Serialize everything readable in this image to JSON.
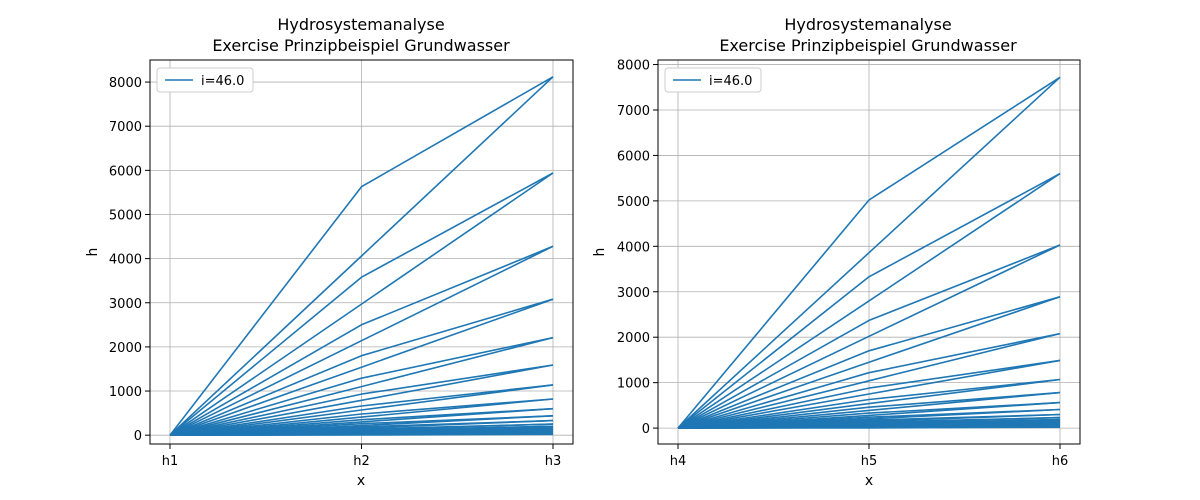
{
  "chart_data": [
    {
      "type": "line",
      "title": "Hydrosystemanalyse",
      "subtitle": "Exercise Prinzipbeispiel Grundwasser",
      "xlabel": "x",
      "ylabel": "h",
      "categories": [
        "h1",
        "h2",
        "h3"
      ],
      "ylim": [
        -200,
        8500
      ],
      "yticks": [
        0,
        1000,
        2000,
        3000,
        4000,
        5000,
        6000,
        7000,
        8000
      ],
      "grid": true,
      "legend": {
        "placement": "top-left",
        "entries": [
          "i=46.0"
        ]
      },
      "series": [
        {
          "values": [
            0,
            5630,
            8120
          ]
        },
        {
          "values": [
            0,
            4060,
            8120
          ]
        },
        {
          "values": [
            0,
            3580,
            5940
          ]
        },
        {
          "values": [
            0,
            2970,
            5940
          ]
        },
        {
          "values": [
            0,
            2500,
            4280
          ]
        },
        {
          "values": [
            0,
            2140,
            4280
          ]
        },
        {
          "values": [
            0,
            1800,
            3080
          ]
        },
        {
          "values": [
            0,
            1540,
            3080
          ]
        },
        {
          "values": [
            0,
            1290,
            2210
          ]
        },
        {
          "values": [
            0,
            1100,
            2210
          ]
        },
        {
          "values": [
            0,
            930,
            1590
          ]
        },
        {
          "values": [
            0,
            790,
            1590
          ]
        },
        {
          "values": [
            0,
            660,
            1140
          ]
        },
        {
          "values": [
            0,
            570,
            1140
          ]
        },
        {
          "values": [
            0,
            480,
            820
          ]
        },
        {
          "values": [
            0,
            410,
            820
          ]
        },
        {
          "values": [
            0,
            350,
            600
          ]
        },
        {
          "values": [
            0,
            300,
            600
          ]
        },
        {
          "values": [
            0,
            260,
            440
          ]
        },
        {
          "values": [
            0,
            220,
            440
          ]
        },
        {
          "values": [
            0,
            190,
            330
          ]
        },
        {
          "values": [
            0,
            165,
            330
          ]
        },
        {
          "values": [
            0,
            140,
            250
          ]
        },
        {
          "values": [
            0,
            125,
            250
          ]
        },
        {
          "values": [
            0,
            110,
            200
          ]
        },
        {
          "values": [
            0,
            100,
            200
          ]
        },
        {
          "values": [
            0,
            90,
            170
          ]
        },
        {
          "values": [
            0,
            80,
            170
          ]
        },
        {
          "values": [
            0,
            70,
            140
          ]
        },
        {
          "values": [
            0,
            60,
            140
          ]
        },
        {
          "values": [
            0,
            50,
            110
          ]
        },
        {
          "values": [
            0,
            40,
            110
          ]
        },
        {
          "values": [
            0,
            30,
            80
          ]
        },
        {
          "values": [
            0,
            20,
            80
          ]
        },
        {
          "values": [
            0,
            15,
            50
          ]
        },
        {
          "values": [
            0,
            10,
            50
          ]
        },
        {
          "values": [
            0,
            5,
            20
          ]
        }
      ]
    },
    {
      "type": "line",
      "title": "Hydrosystemanalyse",
      "subtitle": "Exercise Prinzipbeispiel Grundwasser",
      "xlabel": "x",
      "ylabel": "h",
      "categories": [
        "h4",
        "h5",
        "h6"
      ],
      "ylim": [
        -350,
        8100
      ],
      "yticks": [
        0,
        1000,
        2000,
        3000,
        4000,
        5000,
        6000,
        7000,
        8000
      ],
      "grid": true,
      "legend": {
        "placement": "top-left",
        "entries": [
          "i=46.0"
        ]
      },
      "series": [
        {
          "values": [
            0,
            5020,
            7720
          ]
        },
        {
          "values": [
            0,
            3860,
            7720
          ]
        },
        {
          "values": [
            0,
            3330,
            5600
          ]
        },
        {
          "values": [
            0,
            2800,
            5600
          ]
        },
        {
          "values": [
            0,
            2370,
            4030
          ]
        },
        {
          "values": [
            0,
            2020,
            4030
          ]
        },
        {
          "values": [
            0,
            1700,
            2890
          ]
        },
        {
          "values": [
            0,
            1450,
            2890
          ]
        },
        {
          "values": [
            0,
            1220,
            2080
          ]
        },
        {
          "values": [
            0,
            1040,
            2080
          ]
        },
        {
          "values": [
            0,
            880,
            1490
          ]
        },
        {
          "values": [
            0,
            750,
            1490
          ]
        },
        {
          "values": [
            0,
            630,
            1070
          ]
        },
        {
          "values": [
            0,
            540,
            1070
          ]
        },
        {
          "values": [
            0,
            460,
            780
          ]
        },
        {
          "values": [
            0,
            390,
            780
          ]
        },
        {
          "values": [
            0,
            330,
            560
          ]
        },
        {
          "values": [
            0,
            280,
            560
          ]
        },
        {
          "values": [
            0,
            240,
            410
          ]
        },
        {
          "values": [
            0,
            205,
            410
          ]
        },
        {
          "values": [
            0,
            175,
            300
          ]
        },
        {
          "values": [
            0,
            150,
            300
          ]
        },
        {
          "values": [
            0,
            130,
            230
          ]
        },
        {
          "values": [
            0,
            115,
            230
          ]
        },
        {
          "values": [
            0,
            100,
            190
          ]
        },
        {
          "values": [
            0,
            90,
            190
          ]
        },
        {
          "values": [
            0,
            80,
            160
          ]
        },
        {
          "values": [
            0,
            70,
            160
          ]
        },
        {
          "values": [
            0,
            60,
            130
          ]
        },
        {
          "values": [
            0,
            50,
            130
          ]
        },
        {
          "values": [
            0,
            40,
            100
          ]
        },
        {
          "values": [
            0,
            30,
            100
          ]
        },
        {
          "values": [
            0,
            20,
            70
          ]
        },
        {
          "values": [
            0,
            15,
            70
          ]
        },
        {
          "values": [
            0,
            10,
            40
          ]
        },
        {
          "values": [
            0,
            5,
            20
          ]
        }
      ]
    }
  ]
}
